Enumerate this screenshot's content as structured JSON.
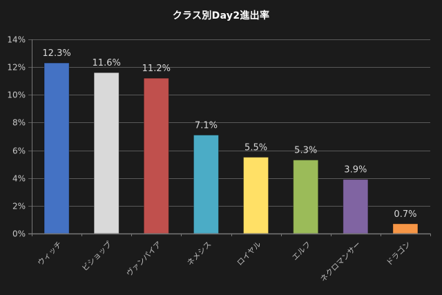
{
  "chart_data": {
    "type": "bar",
    "title": "クラス別Day2進出率",
    "xlabel": "",
    "ylabel": "",
    "categories": [
      "ウィッチ",
      "ビショップ",
      "ヴァンパイア",
      "ネメシス",
      "ロイヤル",
      "エルフ",
      "ネクロマンサー",
      "ドラゴン"
    ],
    "values": [
      12.3,
      11.6,
      11.2,
      7.1,
      5.5,
      5.3,
      3.9,
      0.7
    ],
    "data_labels": [
      "12.3%",
      "11.6%",
      "11.2%",
      "7.1%",
      "5.5%",
      "5.3%",
      "3.9%",
      "0.7%"
    ],
    "bar_colors": [
      "#4472c4",
      "#d9d9d9",
      "#c0504d",
      "#4bacc6",
      "#ffe066",
      "#9bbb59",
      "#8064a2",
      "#f79646"
    ],
    "ylim": [
      0,
      14
    ],
    "yticks": [
      0,
      2,
      4,
      6,
      8,
      10,
      12,
      14
    ],
    "ytick_labels": [
      "0%",
      "2%",
      "4%",
      "6%",
      "8%",
      "10%",
      "12%",
      "14%"
    ],
    "grid": true,
    "legend": "none",
    "x_label_rotation": -45
  },
  "theme": {
    "background": "#1b1b1b",
    "grid_color": "#5a5a5a",
    "axis_color": "#7a7a7a",
    "title_color": "#ffffff"
  }
}
